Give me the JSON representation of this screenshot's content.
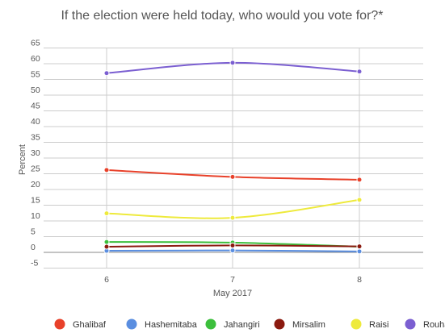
{
  "chart_data": {
    "type": "line",
    "title": "If the election were held today, who would you vote for?*",
    "xlabel": "May 2017",
    "ylabel": "Percent",
    "x": [
      "6",
      "7",
      "8"
    ],
    "ylim": [
      -5,
      65
    ],
    "yticks": [
      "-5",
      "0",
      "5",
      "10",
      "15",
      "20",
      "25",
      "30",
      "35",
      "40",
      "45",
      "50",
      "55",
      "60",
      "65"
    ],
    "grid": true,
    "legend_position": "bottom",
    "series": [
      {
        "name": "Ghalibaf",
        "color": "#e8412a",
        "values": [
          26.2,
          24.0,
          23.1
        ]
      },
      {
        "name": "Hashemitaba",
        "color": "#5a8ee0",
        "values": [
          0.5,
          0.6,
          0.3
        ]
      },
      {
        "name": "Jahangiri",
        "color": "#3cbf3c",
        "values": [
          3.3,
          3.1,
          1.8
        ]
      },
      {
        "name": "Mirsalim",
        "color": "#8b1a0f",
        "values": [
          1.8,
          2.2,
          1.9
        ]
      },
      {
        "name": "Raisi",
        "color": "#eeea3c",
        "values": [
          12.4,
          11.0,
          16.7
        ]
      },
      {
        "name": "Rouhani",
        "color": "#7b5fd1",
        "values": [
          57.0,
          60.3,
          57.5
        ]
      }
    ]
  }
}
